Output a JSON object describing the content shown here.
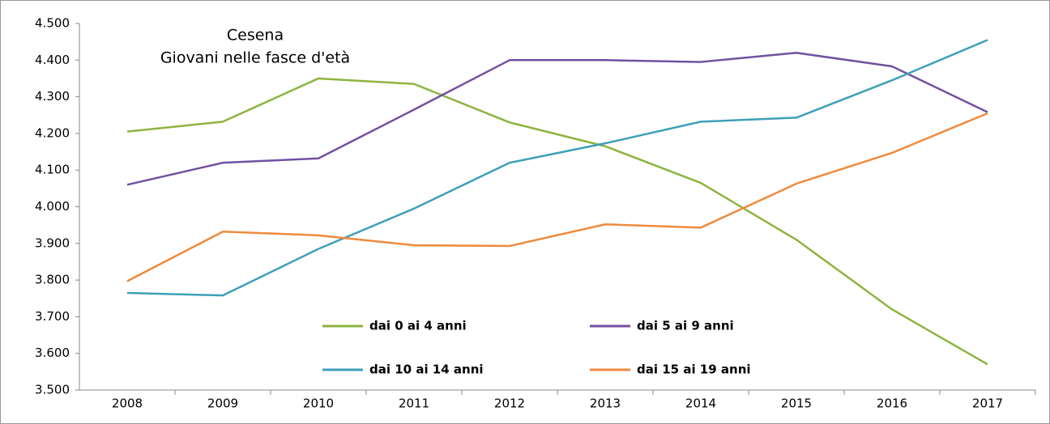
{
  "chart_data": {
    "type": "line",
    "title": "Cesena",
    "subtitle": "Giovani nelle fasce d'età",
    "categories": [
      "2008",
      "2009",
      "2010",
      "2011",
      "2012",
      "2013",
      "2014",
      "2015",
      "2016",
      "2017"
    ],
    "series": [
      {
        "name": "dai 0 ai 4 anni",
        "color": "#8db33f",
        "values": [
          4205,
          4232,
          4350,
          4335,
          4230,
          4165,
          4065,
          3910,
          3720,
          3570
        ]
      },
      {
        "name": "dai 5 ai 9 anni",
        "color": "#7151a0",
        "values": [
          4060,
          4120,
          4132,
          4265,
          4400,
          4400,
          4395,
          4420,
          4383,
          4258
        ]
      },
      {
        "name": "dai 10 ai 14 anni",
        "color": "#3da0b8",
        "values": [
          3765,
          3758,
          3885,
          3995,
          4120,
          4173,
          4232,
          4243,
          4345,
          4455
        ]
      },
      {
        "name": "dai 15 ai 19 anni",
        "color": "#ef8a3c",
        "values": [
          3797,
          3932,
          3922,
          3895,
          3893,
          3952,
          3943,
          4063,
          4147,
          4255
        ]
      }
    ],
    "ylim": [
      3500,
      4500
    ],
    "yticks": [
      {
        "value": 3500,
        "label": "3.500"
      },
      {
        "value": 3600,
        "label": "3.600"
      },
      {
        "value": 3700,
        "label": "3.700"
      },
      {
        "value": 3800,
        "label": "3.800"
      },
      {
        "value": 3900,
        "label": "3.900"
      },
      {
        "value": 4000,
        "label": "4.000"
      },
      {
        "value": 4100,
        "label": "4.100"
      },
      {
        "value": 4200,
        "label": "4.200"
      },
      {
        "value": 4300,
        "label": "4.300"
      },
      {
        "value": 4400,
        "label": "4.400"
      },
      {
        "value": 4500,
        "label": "4.500"
      }
    ],
    "grid": false,
    "legend": "inside"
  }
}
